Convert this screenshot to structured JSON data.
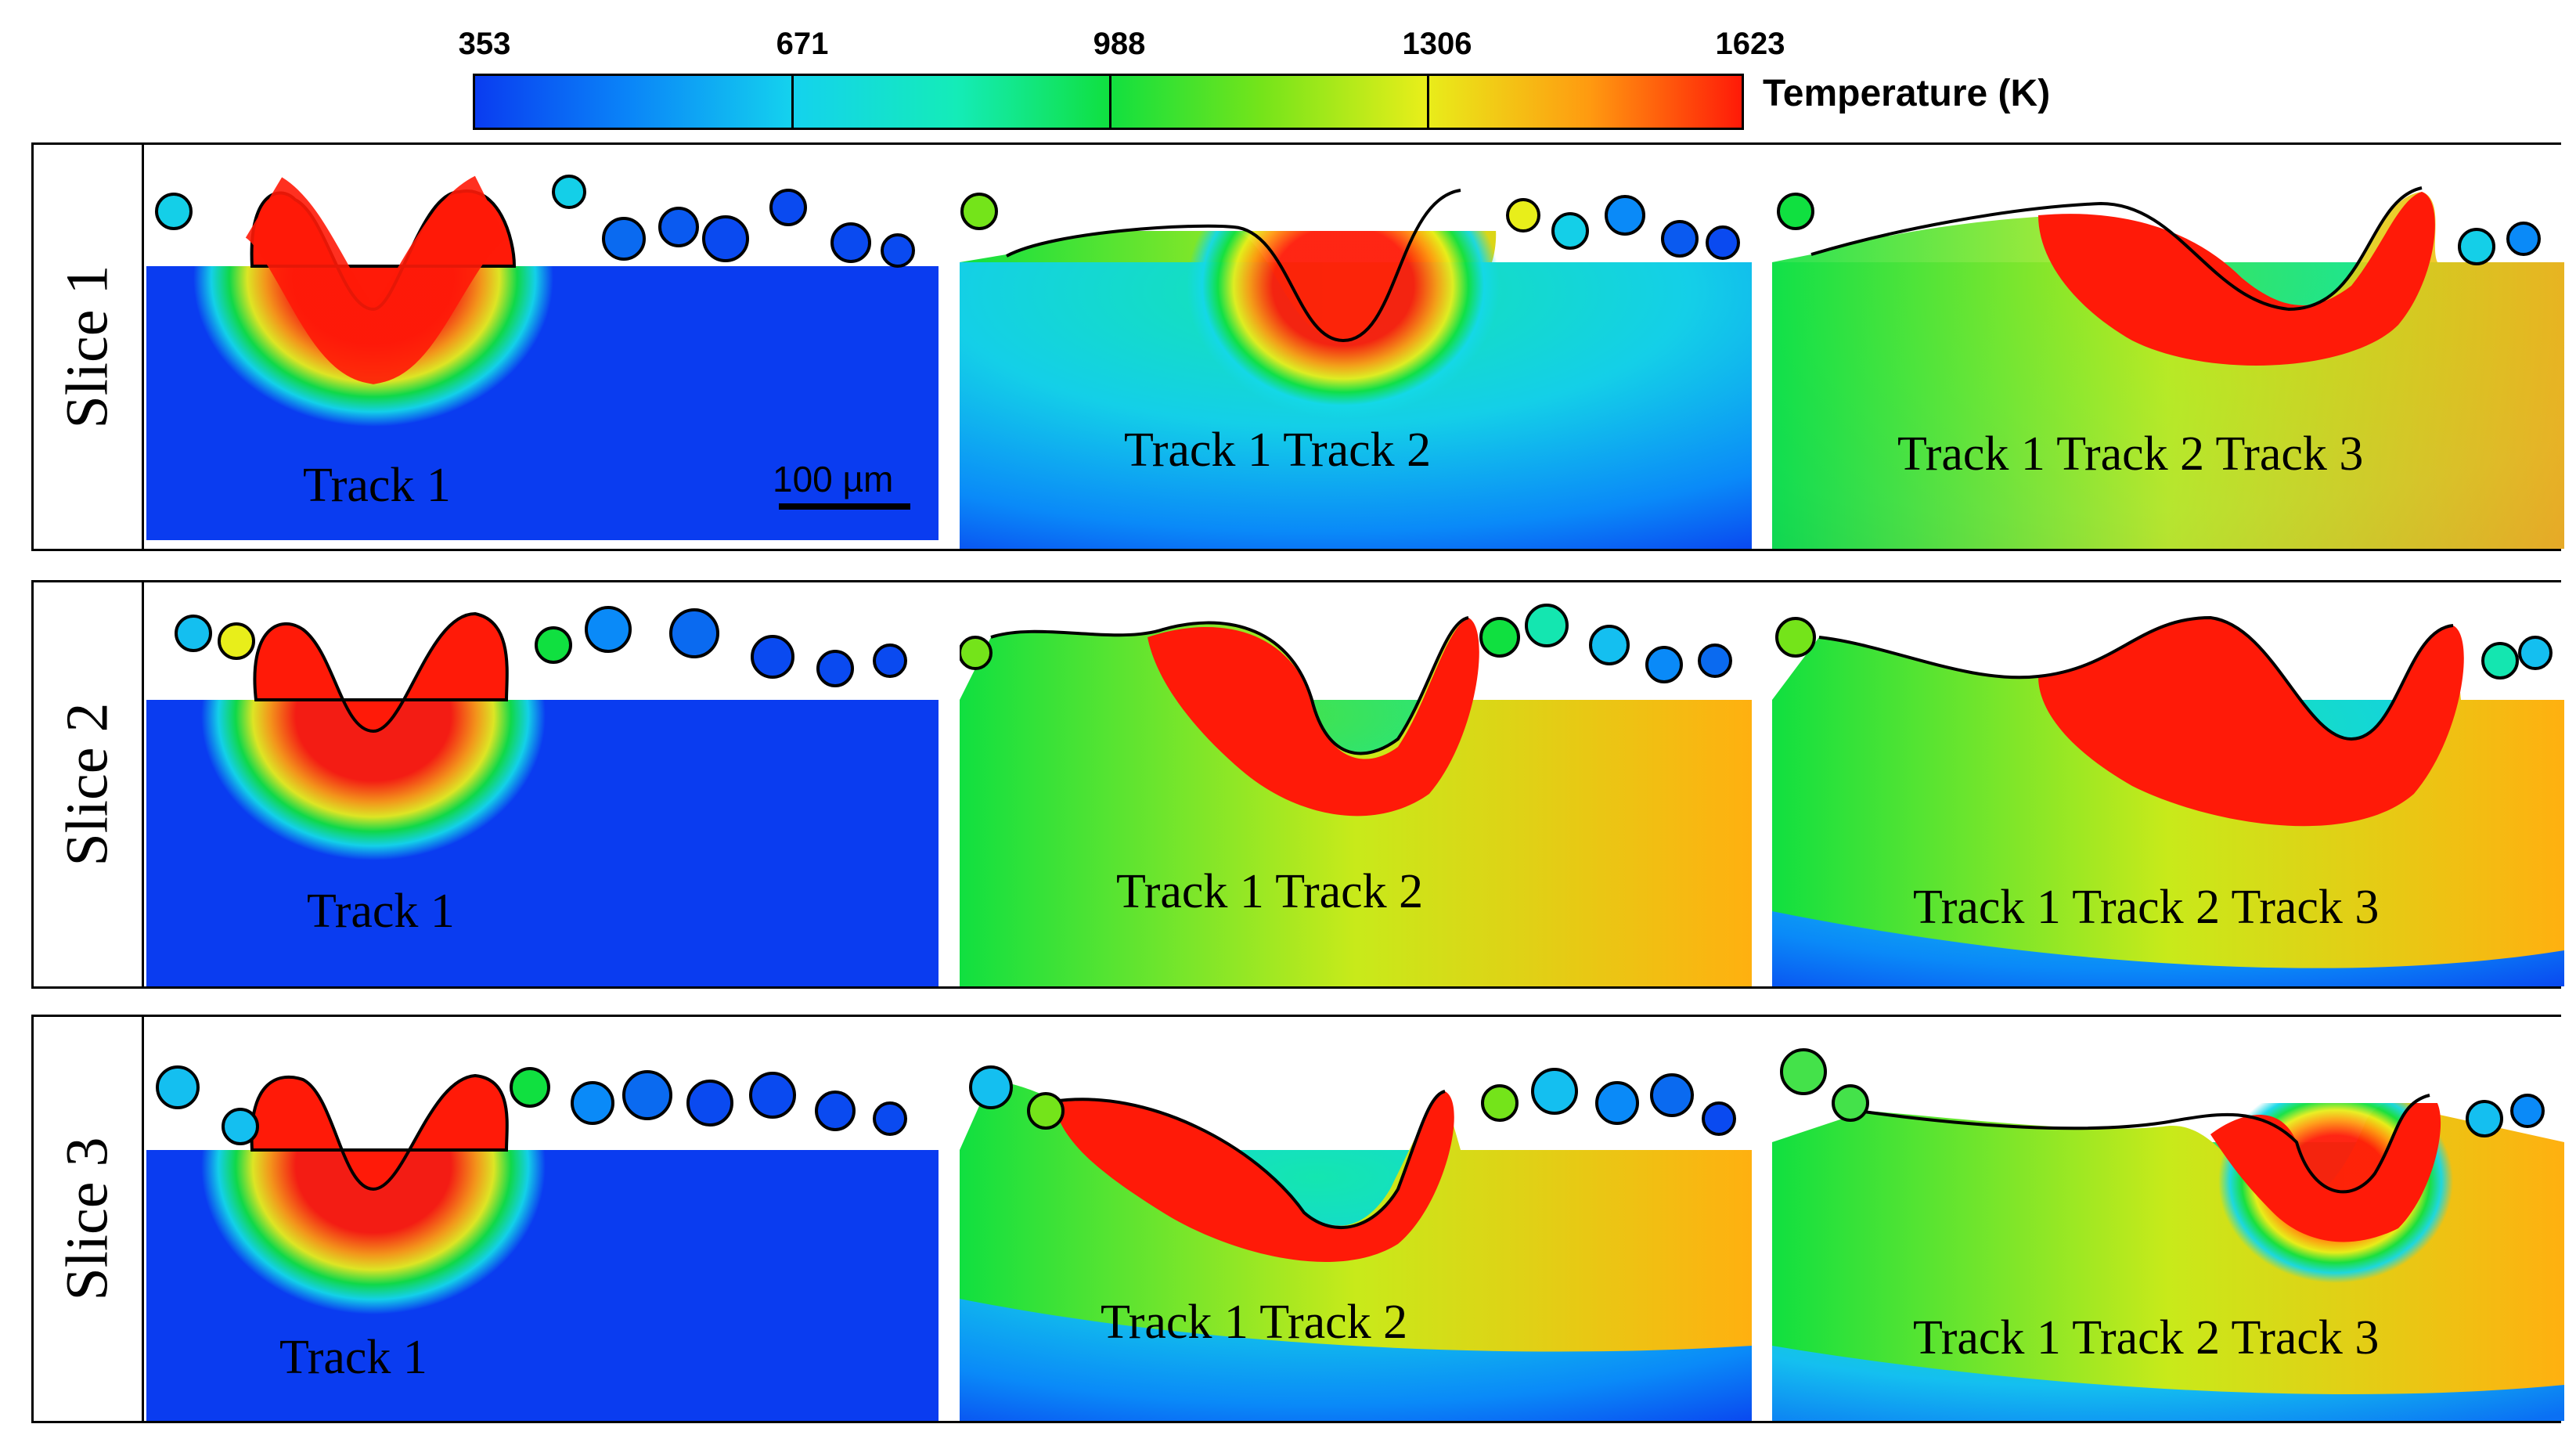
{
  "colorbar": {
    "ticks": [
      "353",
      "671",
      "988",
      "1306",
      "1623"
    ],
    "title": "Temperature (K)",
    "colors": [
      "#0a3cf0",
      "#14d2ee",
      "#10e040",
      "#e8ee1a",
      "#ff1a08"
    ]
  },
  "rows": [
    {
      "label": "Slice 1",
      "panels": [
        {
          "tracks": "Track 1"
        },
        {
          "tracks": "Track 1 Track 2"
        },
        {
          "tracks": "Track 1 Track 2 Track 3"
        }
      ]
    },
    {
      "label": "Slice 2",
      "panels": [
        {
          "tracks": "Track 1"
        },
        {
          "tracks": "Track 1  Track 2"
        },
        {
          "tracks": "Track 1 Track 2 Track 3"
        }
      ]
    },
    {
      "label": "Slice 3",
      "panels": [
        {
          "tracks": "Track 1"
        },
        {
          "tracks": "Track 1   Track 2"
        },
        {
          "tracks": "Track 1 Track 2 Track 3"
        }
      ]
    }
  ],
  "scale_bar": {
    "label": "100 µm"
  },
  "colors": {
    "cold": "#0a3cf0",
    "cool": "#14c8f0",
    "warm": "#10e040",
    "hot": "#e8ee1a",
    "melt": "#ff1a08"
  }
}
